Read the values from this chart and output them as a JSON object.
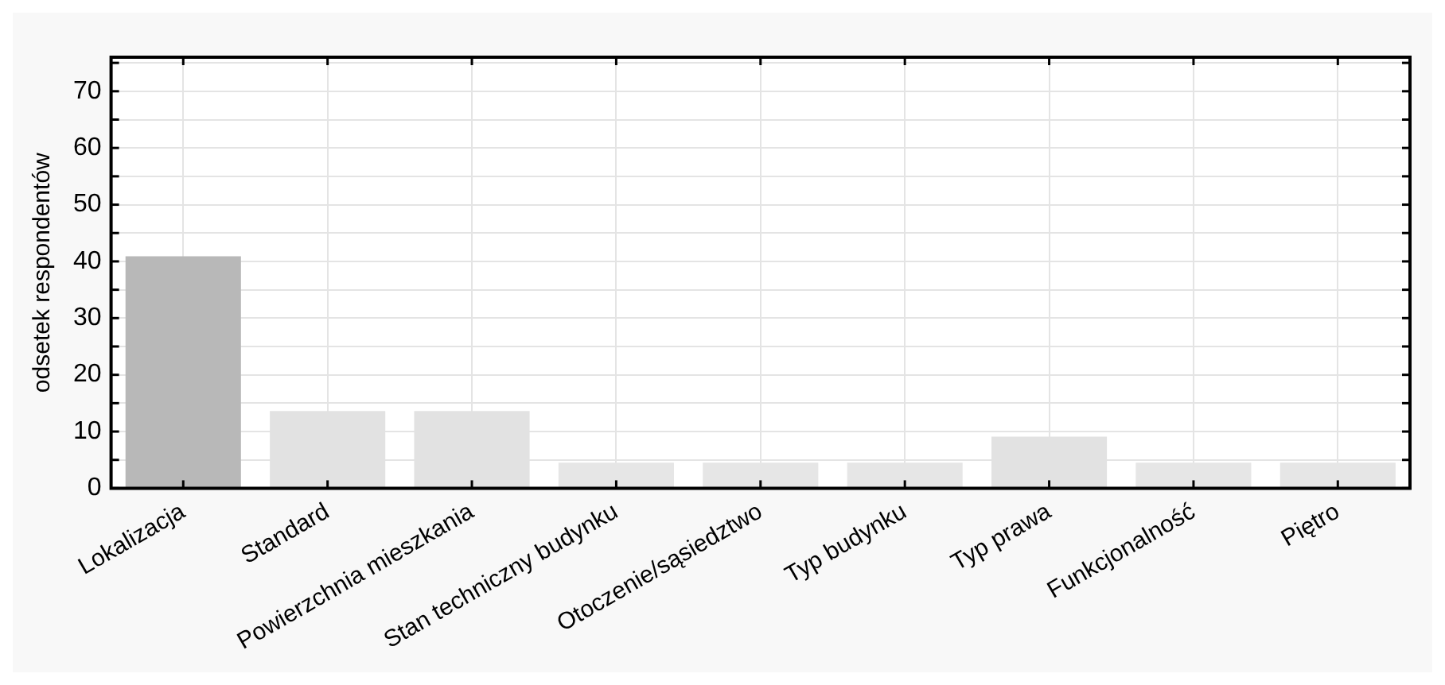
{
  "chart_data": {
    "type": "bar",
    "ylabel": "odsetek respondentów",
    "categories": [
      "Lokalizacja",
      "Standard",
      "Powierzchnia mieszkania",
      "Stan techniczny budynku",
      "Otoczenie/sąsiedztwo",
      "Typ budynku",
      "Typ prawa",
      "Funkcjonalność",
      "Piętro"
    ],
    "values": [
      40.9,
      13.6,
      13.6,
      4.5,
      4.5,
      4.5,
      9.1,
      4.5,
      4.5
    ],
    "colors": [
      "#b8b8b8",
      "#e2e2e2",
      "#e2e2e2",
      "#e6e6e6",
      "#e6e6e6",
      "#e6e6e6",
      "#e2e2e2",
      "#e6e6e6",
      "#e6e6e6"
    ],
    "ylim": [
      0,
      76
    ],
    "yticks": [
      0,
      {
        "value": 5,
        "label": null
      },
      10,
      {
        "value": 15,
        "label": null
      },
      20,
      {
        "value": 25,
        "label": null
      },
      30,
      {
        "value": 35,
        "label": null
      },
      40,
      {
        "value": 45,
        "label": null
      },
      50,
      {
        "value": 55,
        "label": null
      },
      60,
      {
        "value": 65,
        "label": null
      },
      70,
      {
        "value": 75,
        "label": null
      }
    ],
    "grid": true,
    "legend": false
  }
}
